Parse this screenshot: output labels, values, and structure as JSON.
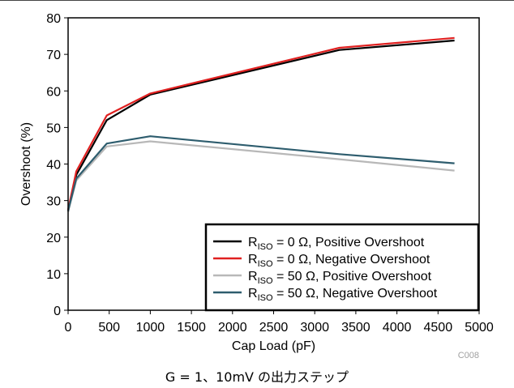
{
  "caption": "G = 1、10mV の出力ステップ",
  "code_label": "C008",
  "chart_data": {
    "type": "line",
    "xlabel": "Cap Load (pF)",
    "ylabel": "Overshoot (%)",
    "xlim": [
      0,
      5000
    ],
    "ylim": [
      0,
      80
    ],
    "x_ticks": [
      0,
      500,
      1000,
      1500,
      2000,
      2500,
      3000,
      3500,
      4000,
      4500,
      5000
    ],
    "y_ticks": [
      0,
      10,
      20,
      30,
      40,
      50,
      60,
      70,
      80
    ],
    "grid": false,
    "legend_position": "bottom-right",
    "series": [
      {
        "name": "RISO = 0 Ω, Positive Overshoot",
        "label_main": "R",
        "label_sub": "ISO",
        "label_rest": " = 0 Ω, Positive Overshoot",
        "color": "#000000",
        "points": [
          [
            0,
            27
          ],
          [
            100,
            37
          ],
          [
            470,
            52
          ],
          [
            1000,
            59
          ],
          [
            3300,
            71.2
          ],
          [
            4700,
            73.8
          ]
        ]
      },
      {
        "name": "RISO = 0 Ω, Negative Overshoot",
        "label_main": "R",
        "label_sub": "ISO",
        "label_rest": " = 0 Ω, Negative Overshoot",
        "color": "#e02020",
        "points": [
          [
            0,
            27.5
          ],
          [
            100,
            38
          ],
          [
            470,
            53.3
          ],
          [
            1000,
            59.3
          ],
          [
            3300,
            71.8
          ],
          [
            4700,
            74.5
          ]
        ]
      },
      {
        "name": "RISO = 50 Ω, Positive Overshoot",
        "label_main": "R",
        "label_sub": "ISO",
        "label_rest": " = 50 Ω, Positive Overshoot",
        "color": "#b8b8b8",
        "points": [
          [
            0,
            27
          ],
          [
            100,
            35.5
          ],
          [
            470,
            44.8
          ],
          [
            1000,
            46.2
          ],
          [
            3300,
            41.3
          ],
          [
            4700,
            38.2
          ]
        ]
      },
      {
        "name": "RISO = 50 Ω, Negative Overshoot",
        "label_main": "R",
        "label_sub": "ISO",
        "label_rest": " = 50 Ω, Negative Overshoot",
        "color": "#2e5d6e",
        "points": [
          [
            0,
            27.2
          ],
          [
            100,
            36
          ],
          [
            470,
            45.6
          ],
          [
            1000,
            47.6
          ],
          [
            3300,
            42.7
          ],
          [
            4700,
            40.2
          ]
        ]
      }
    ]
  }
}
